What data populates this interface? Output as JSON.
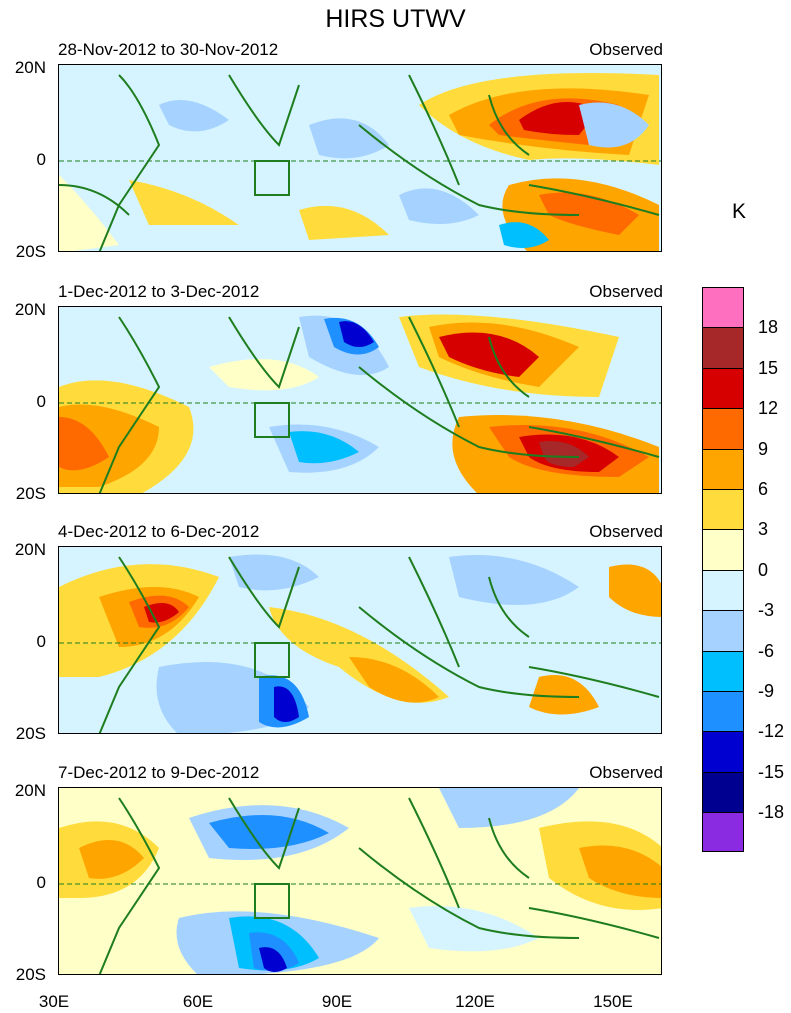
{
  "title": "HIRS UTWV",
  "panels": [
    {
      "period": "28-Nov-2012 to 30-Nov-2012",
      "label": "Observed"
    },
    {
      "period": "1-Dec-2012 to 3-Dec-2012",
      "label": "Observed"
    },
    {
      "period": "4-Dec-2012 to 6-Dec-2012",
      "label": "Observed"
    },
    {
      "period": "7-Dec-2012 to 9-Dec-2012",
      "label": "Observed"
    }
  ],
  "lat_labels": [
    "20N",
    "0",
    "20S"
  ],
  "lon_labels": [
    "30E",
    "60E",
    "90E",
    "120E",
    "150E"
  ],
  "colorbar": {
    "unit": "K",
    "levels": [
      "18",
      "15",
      "12",
      "9",
      "6",
      "3",
      "0",
      "-3",
      "-6",
      "-9",
      "-12",
      "-15",
      "-18"
    ],
    "colors": [
      "#ff6fbf",
      "#a62828",
      "#d60000",
      "#ff6a00",
      "#ffa500",
      "#ffdc3c",
      "#ffffc8",
      "#d6f4ff",
      "#a6d2ff",
      "#00bfff",
      "#1e90ff",
      "#0000d0",
      "#000090",
      "#8a2be2"
    ]
  },
  "colors": {
    "coast": "#1e7d1e",
    "box": "#1e7d1e"
  }
}
